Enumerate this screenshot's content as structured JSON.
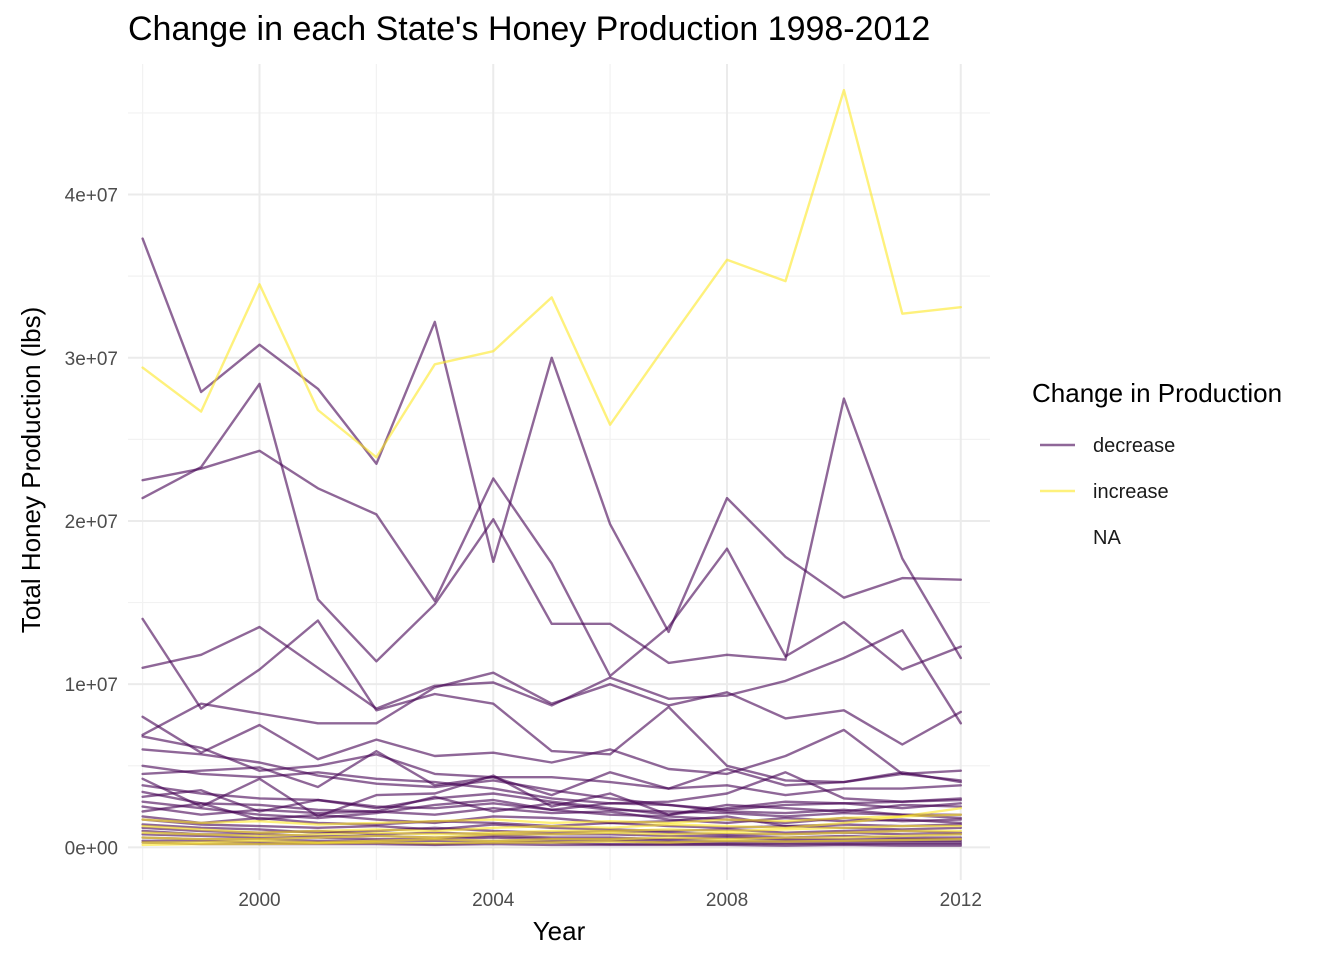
{
  "chart_data": {
    "type": "line",
    "title": "Change in each State's Honey Production 1998-2012",
    "xlabel": "Year",
    "ylabel": "Total Honey Production (lbs)",
    "xlim": [
      1997.75,
      2012.5
    ],
    "ylim": [
      -2000000,
      48000000
    ],
    "x_ticks": [
      2000,
      2004,
      2008,
      2012
    ],
    "x_tick_labels": [
      "2000",
      "2004",
      "2008",
      "2012"
    ],
    "y_ticks": [
      0,
      10000000,
      20000000,
      30000000,
      40000000
    ],
    "y_tick_labels": [
      "0e+00",
      "1e+07",
      "2e+07",
      "3e+07",
      "4e+07"
    ],
    "grid": true,
    "legend": {
      "title": "Change in Production",
      "position": "right",
      "entries": [
        {
          "label": "decrease",
          "color": "#440154"
        },
        {
          "label": "increase",
          "color": "#FDE725"
        },
        {
          "label": "NA",
          "color": ""
        }
      ]
    },
    "colors": {
      "decrease": "#440154",
      "increase": "#FDE725"
    },
    "line_opacity": 0.6,
    "x": [
      1998,
      1999,
      2000,
      2001,
      2002,
      2003,
      2004,
      2005,
      2006,
      2007,
      2008,
      2009,
      2010,
      2011,
      2012
    ],
    "series": [
      {
        "group": "increase",
        "values": [
          29400000,
          26700000,
          34500000,
          26800000,
          23900000,
          29600000,
          30400000,
          33700000,
          25900000,
          31000000,
          36000000,
          34700000,
          46400000,
          32700000,
          33100000
        ]
      },
      {
        "group": "decrease",
        "values": [
          37300000,
          27900000,
          30800000,
          28100000,
          23500000,
          32200000,
          17500000,
          30000000,
          19800000,
          13200000,
          21400000,
          17800000,
          15300000,
          16500000,
          16400000
        ]
      },
      {
        "group": "decrease",
        "values": [
          21400000,
          23300000,
          28400000,
          15200000,
          11400000,
          14900000,
          20100000,
          13700000,
          13700000,
          11300000,
          11800000,
          11500000,
          27500000,
          17700000,
          11600000
        ]
      },
      {
        "group": "decrease",
        "values": [
          22500000,
          23200000,
          24300000,
          22000000,
          20400000,
          15100000,
          22600000,
          17400000,
          10500000,
          13500000,
          18300000,
          11700000,
          13800000,
          10900000,
          12300000
        ]
      },
      {
        "group": "decrease",
        "values": [
          11000000,
          11800000,
          13500000,
          11000000,
          8500000,
          9900000,
          10100000,
          8700000,
          10400000,
          9100000,
          9300000,
          10200000,
          11600000,
          13300000,
          7600000
        ]
      },
      {
        "group": "decrease",
        "values": [
          14000000,
          8500000,
          10900000,
          13900000,
          8400000,
          9400000,
          8800000,
          5900000,
          5700000,
          8600000,
          5000000,
          4100000,
          4000000,
          4500000,
          4100000
        ]
      },
      {
        "group": "decrease",
        "values": [
          8000000,
          5800000,
          7500000,
          5400000,
          6600000,
          5600000,
          5800000,
          5200000,
          6000000,
          4800000,
          4500000,
          5600000,
          7200000,
          4500000,
          4700000
        ]
      },
      {
        "group": "decrease",
        "values": [
          6900000,
          8800000,
          8200000,
          7600000,
          7600000,
          9800000,
          10700000,
          8800000,
          10000000,
          8700000,
          9500000,
          7900000,
          8400000,
          6300000,
          8300000
        ]
      },
      {
        "group": "decrease",
        "values": [
          6800000,
          6100000,
          4700000,
          5000000,
          5700000,
          4500000,
          4300000,
          4300000,
          4000000,
          3600000,
          4800000,
          3800000,
          4000000,
          4600000,
          4000000
        ]
      },
      {
        "group": "decrease",
        "values": [
          6000000,
          5700000,
          5200000,
          4400000,
          3900000,
          3700000,
          4100000,
          3500000,
          3000000,
          2600000,
          2300000,
          2600000,
          2700000,
          2400000,
          2700000
        ]
      },
      {
        "group": "decrease",
        "values": [
          5000000,
          4500000,
          4300000,
          4600000,
          4200000,
          4000000,
          3600000,
          3000000,
          2700000,
          2800000,
          3300000,
          4600000,
          3000000,
          2800000,
          3000000
        ]
      },
      {
        "group": "decrease",
        "values": [
          4500000,
          4700000,
          4900000,
          3700000,
          5900000,
          3800000,
          4300000,
          3200000,
          4600000,
          3600000,
          3800000,
          3200000,
          3600000,
          3600000,
          3800000
        ]
      },
      {
        "group": "decrease",
        "values": [
          4200000,
          2500000,
          4200000,
          1900000,
          3200000,
          3300000,
          4400000,
          2500000,
          3300000,
          2000000,
          2400000,
          2800000,
          2700000,
          2800000,
          2900000
        ]
      },
      {
        "group": "decrease",
        "values": [
          3800000,
          3300000,
          3000000,
          2900000,
          2500000,
          2400000,
          2700000,
          2300000,
          2700000,
          2600000,
          2200000,
          2100000,
          2300000,
          2000000,
          2000000
        ]
      },
      {
        "group": "decrease",
        "values": [
          3400000,
          2700000,
          2600000,
          2300000,
          2200000,
          3100000,
          2200000,
          2700000,
          2300000,
          2200000,
          2100000,
          1900000,
          2100000,
          2000000,
          1800000
        ]
      },
      {
        "group": "decrease",
        "values": [
          3100000,
          3500000,
          2200000,
          2900000,
          2400000,
          3000000,
          3300000,
          2800000,
          2400000,
          2000000,
          2600000,
          2400000,
          2200000,
          2600000,
          2500000
        ]
      },
      {
        "group": "decrease",
        "values": [
          2800000,
          2400000,
          2000000,
          1800000,
          2100000,
          2600000,
          2900000,
          2300000,
          2000000,
          1900000,
          1700000,
          1500000,
          1800000,
          1600000,
          1700000
        ]
      },
      {
        "group": "decrease",
        "values": [
          2500000,
          2000000,
          2300000,
          2100000,
          2200000,
          2000000,
          2400000,
          2100000,
          2200000,
          1700000,
          1500000,
          1800000,
          1600000,
          1700000,
          1500000
        ]
      },
      {
        "group": "decrease",
        "values": [
          2200000,
          2700000,
          1700000,
          2000000,
          1700000,
          1500000,
          1900000,
          1800000,
          1500000,
          1600000,
          1900000,
          1300000,
          1400000,
          1300000,
          1400000
        ]
      },
      {
        "group": "decrease",
        "values": [
          1900000,
          1500000,
          1800000,
          1500000,
          1400000,
          1600000,
          1500000,
          1300000,
          1500000,
          1300000,
          1200000,
          1300000,
          1200000,
          1100000,
          1200000
        ]
      },
      {
        "group": "decrease",
        "values": [
          1700000,
          1400000,
          1300000,
          1200000,
          1300000,
          1100000,
          1400000,
          1200000,
          1100000,
          1000000,
          1100000,
          900000,
          1000000,
          1000000,
          900000
        ]
      },
      {
        "group": "decrease",
        "values": [
          1400000,
          1200000,
          1100000,
          900000,
          1000000,
          1200000,
          1000000,
          900000,
          1000000,
          900000,
          800000,
          800000,
          900000,
          800000,
          800000
        ]
      },
      {
        "group": "decrease",
        "values": [
          1200000,
          1000000,
          900000,
          1000000,
          800000,
          900000,
          800000,
          800000,
          800000,
          700000,
          700000,
          600000,
          700000,
          600000,
          600000
        ]
      },
      {
        "group": "decrease",
        "values": [
          1000000,
          800000,
          800000,
          700000,
          700000,
          600000,
          700000,
          600000,
          600000,
          500000,
          600000,
          500000,
          500000,
          500000,
          500000
        ]
      },
      {
        "group": "decrease",
        "values": [
          800000,
          700000,
          600000,
          600000,
          500000,
          500000,
          600000,
          500000,
          500000,
          400000,
          400000,
          400000,
          400000,
          400000,
          400000
        ]
      },
      {
        "group": "decrease",
        "values": [
          600000,
          500000,
          500000,
          400000,
          400000,
          400000,
          400000,
          400000,
          400000,
          300000,
          300000,
          300000,
          300000,
          300000,
          300000
        ]
      },
      {
        "group": "decrease",
        "values": [
          400000,
          400000,
          300000,
          300000,
          300000,
          200000,
          300000,
          300000,
          200000,
          200000,
          200000,
          200000,
          200000,
          200000,
          200000
        ]
      },
      {
        "group": "decrease",
        "values": [
          300000,
          200000,
          200000,
          200000,
          200000,
          150000,
          200000,
          150000,
          150000,
          150000,
          150000,
          100000,
          150000,
          100000,
          100000
        ]
      },
      {
        "group": "increase",
        "values": [
          1300000,
          1100000,
          900000,
          1000000,
          1100000,
          1000000,
          1200000,
          1300000,
          1200000,
          1400000,
          1300000,
          1200000,
          1500000,
          1900000,
          2400000
        ]
      },
      {
        "group": "increase",
        "values": [
          900000,
          800000,
          700000,
          800000,
          900000,
          800000,
          900000,
          1000000,
          1000000,
          1100000,
          1000000,
          1100000,
          1200000,
          1300000,
          1300000
        ]
      },
      {
        "group": "increase",
        "values": [
          600000,
          500000,
          500000,
          600000,
          700000,
          600000,
          800000,
          800000,
          900000,
          800000,
          900000,
          800000,
          900000,
          1000000,
          1000000
        ]
      },
      {
        "group": "increase",
        "values": [
          300000,
          300000,
          400000,
          300000,
          400000,
          500000,
          400000,
          500000,
          500000,
          600000,
          500000,
          600000,
          600000,
          700000,
          800000
        ]
      },
      {
        "group": "increase",
        "values": [
          150000,
          200000,
          200000,
          250000,
          300000,
          250000,
          300000,
          300000,
          350000,
          300000,
          400000,
          350000,
          400000,
          450000,
          500000
        ]
      },
      {
        "group": "increase",
        "values": [
          1700000,
          1500000,
          1600000,
          1400000,
          1500000,
          1600000,
          1700000,
          1500000,
          1600000,
          1500000,
          1700000,
          1600000,
          1800000,
          1900000,
          2000000
        ]
      }
    ]
  }
}
